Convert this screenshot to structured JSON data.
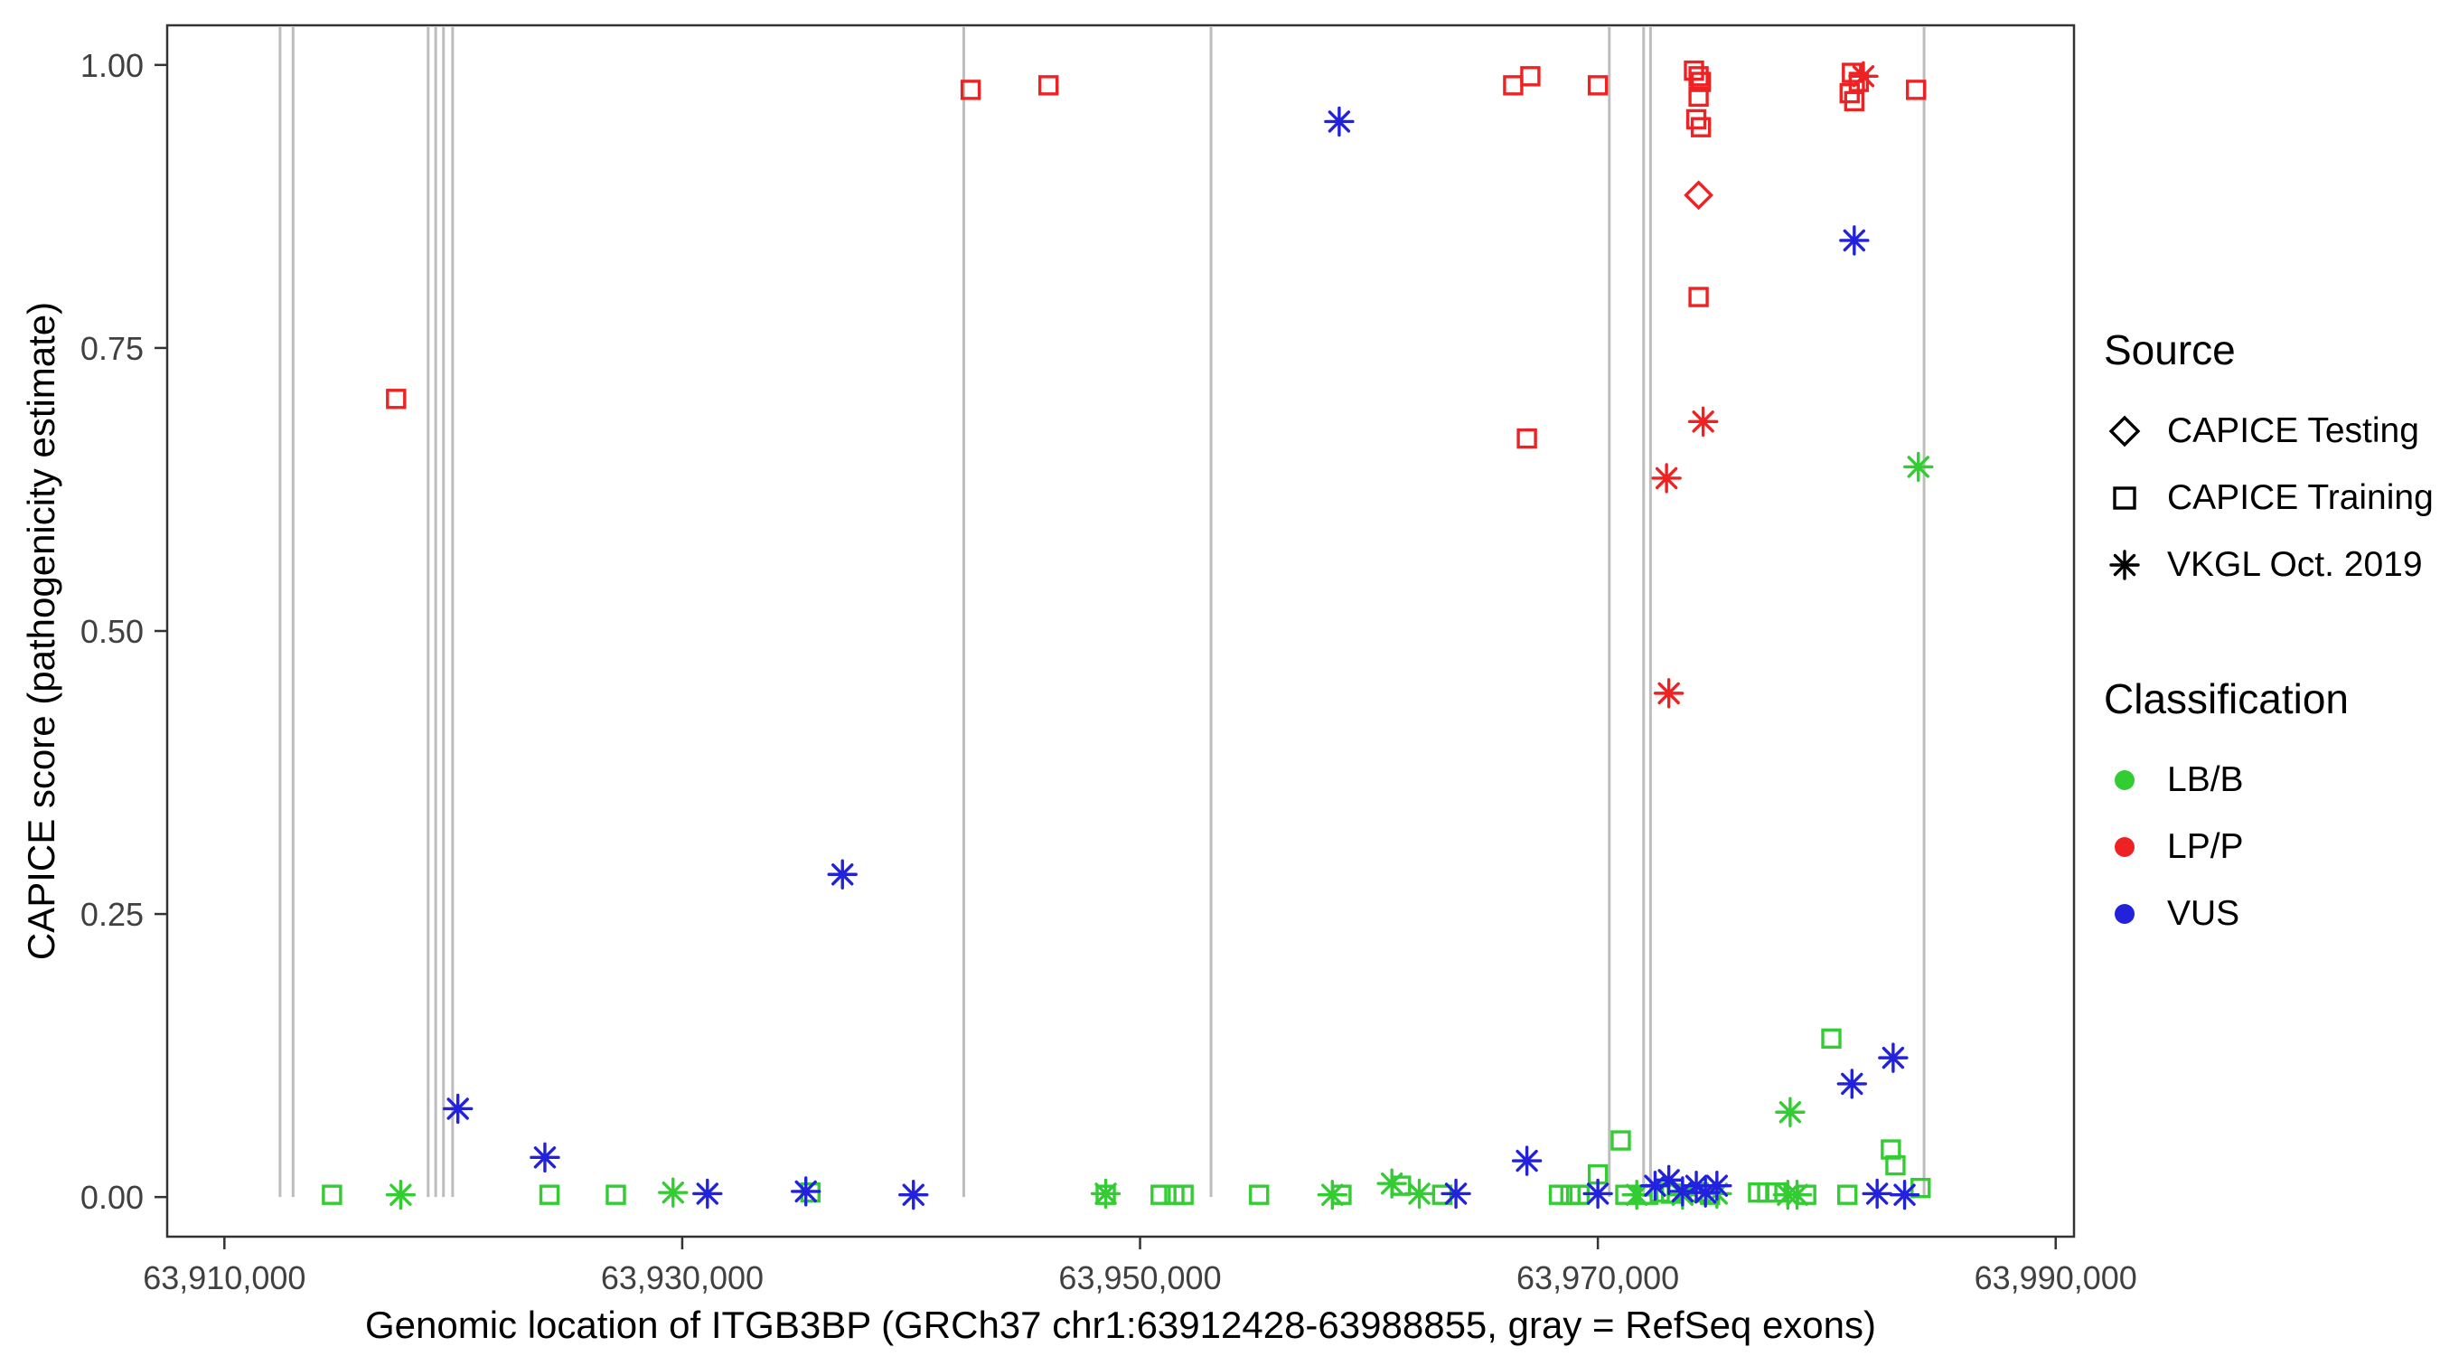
{
  "chart_data": {
    "type": "scatter",
    "title": "",
    "xlabel": "Genomic location of ITGB3BP (GRCh37 chr1:63912428-63988855, gray = RefSeq exons)",
    "ylabel": "CAPICE score (pathogenicity estimate)",
    "x_axis": {
      "min": 63907500,
      "max": 63990800,
      "ticks": [
        63910000,
        63930000,
        63950000,
        63970000,
        63990000
      ],
      "tick_labels": [
        "63,910,000",
        "63,930,000",
        "63,950,000",
        "63,970,000",
        "63,990,000"
      ]
    },
    "y_axis": {
      "min": -0.035,
      "max": 1.035,
      "ticks": [
        0,
        0.25,
        0.5,
        0.75,
        1
      ],
      "tick_labels": [
        "0.00",
        "0.25",
        "0.50",
        "0.75",
        "1.00"
      ]
    },
    "grid": "off",
    "legend_position": "right",
    "exon_color": "#bdbdbd",
    "exons": [
      63912430,
      63913000,
      63918900,
      63919230,
      63919570,
      63919970,
      63942300,
      63953100,
      63970500,
      63972000,
      63972300,
      63984250
    ],
    "colors": {
      "LB/B": "#33CC33",
      "LP/P": "#EE2222",
      "VUS": "#2222DD"
    },
    "legend": {
      "source": {
        "title": "Source",
        "items": [
          {
            "label": "CAPICE Testing",
            "marker": "diamond"
          },
          {
            "label": "CAPICE Training",
            "marker": "square"
          },
          {
            "label": "VKGL Oct. 2019",
            "marker": "asterisk"
          }
        ]
      },
      "classification": {
        "title": "Classification",
        "items": [
          {
            "label": "LB/B"
          },
          {
            "label": "LP/P"
          },
          {
            "label": "VUS"
          }
        ]
      }
    },
    "series": [
      {
        "name": "LP/P - CAPICE Testing",
        "source": "CAPICE Testing",
        "classification": "LP/P",
        "marker": "diamond",
        "points": [
          [
            63974400,
            0.885
          ]
        ]
      },
      {
        "name": "LP/P - CAPICE Training",
        "source": "CAPICE Training",
        "classification": "LP/P",
        "marker": "square",
        "points": [
          [
            63917500,
            0.705
          ],
          [
            63942600,
            0.978
          ],
          [
            63946000,
            0.982
          ],
          [
            63966300,
            0.982
          ],
          [
            63967050,
            0.99
          ],
          [
            63966900,
            0.67
          ],
          [
            63970000,
            0.982
          ],
          [
            63974200,
            0.995
          ],
          [
            63974400,
            0.99
          ],
          [
            63974500,
            0.985
          ],
          [
            63974400,
            0.972
          ],
          [
            63974300,
            0.952
          ],
          [
            63974500,
            0.945
          ],
          [
            63974400,
            0.795
          ],
          [
            63981100,
            0.993
          ],
          [
            63981400,
            0.985
          ],
          [
            63981000,
            0.975
          ],
          [
            63981200,
            0.968
          ],
          [
            63983900,
            0.978
          ]
        ]
      },
      {
        "name": "LP/P - VKGL Oct. 2019",
        "source": "VKGL Oct. 2019",
        "classification": "LP/P",
        "marker": "asterisk",
        "points": [
          [
            63974600,
            0.685
          ],
          [
            63973000,
            0.635
          ],
          [
            63973100,
            0.445
          ],
          [
            63981600,
            0.99
          ]
        ]
      },
      {
        "name": "LB/B - CAPICE Training",
        "source": "CAPICE Training",
        "classification": "LB/B",
        "marker": "square",
        "points": [
          [
            63914700,
            0.002
          ],
          [
            63924200,
            0.002
          ],
          [
            63927100,
            0.002
          ],
          [
            63935600,
            0.004
          ],
          [
            63948500,
            0.002
          ],
          [
            63950900,
            0.002
          ],
          [
            63951500,
            0.002
          ],
          [
            63951900,
            0.002
          ],
          [
            63955200,
            0.002
          ],
          [
            63958800,
            0.002
          ],
          [
            63961400,
            0.01
          ],
          [
            63963200,
            0.002
          ],
          [
            63968300,
            0.002
          ],
          [
            63968800,
            0.002
          ],
          [
            63969200,
            0.002
          ],
          [
            63970000,
            0.02
          ],
          [
            63971000,
            0.05
          ],
          [
            63971200,
            0.002
          ],
          [
            63972200,
            0.002
          ],
          [
            63972700,
            0.004
          ],
          [
            63973200,
            0.003
          ],
          [
            63974400,
            0.004
          ],
          [
            63974900,
            0.002
          ],
          [
            63977000,
            0.004
          ],
          [
            63977400,
            0.004
          ],
          [
            63977800,
            0.004
          ],
          [
            63979100,
            0.002
          ],
          [
            63980200,
            0.14
          ],
          [
            63980900,
            0.002
          ],
          [
            63982800,
            0.042
          ],
          [
            63983000,
            0.028
          ],
          [
            63984100,
            0.008
          ]
        ]
      },
      {
        "name": "LB/B - VKGL Oct. 2019",
        "source": "VKGL Oct. 2019",
        "classification": "LB/B",
        "marker": "asterisk",
        "points": [
          [
            63917700,
            0.002
          ],
          [
            63929600,
            0.004
          ],
          [
            63948500,
            0.003
          ],
          [
            63958400,
            0.002
          ],
          [
            63961000,
            0.012
          ],
          [
            63962200,
            0.003
          ],
          [
            63971700,
            0.002
          ],
          [
            63973700,
            0.002
          ],
          [
            63975200,
            0.003
          ],
          [
            63978300,
            0.002
          ],
          [
            63978700,
            0.002
          ],
          [
            63978400,
            0.075
          ],
          [
            63984000,
            0.645
          ]
        ]
      },
      {
        "name": "VUS - VKGL Oct. 2019",
        "source": "VKGL Oct. 2019",
        "classification": "VUS",
        "marker": "asterisk",
        "points": [
          [
            63958700,
            0.95
          ],
          [
            63981200,
            0.845
          ],
          [
            63937000,
            0.285
          ],
          [
            63920200,
            0.078
          ],
          [
            63924000,
            0.035
          ],
          [
            63982900,
            0.123
          ],
          [
            63981100,
            0.1
          ],
          [
            63966900,
            0.032
          ],
          [
            63931100,
            0.003
          ],
          [
            63935400,
            0.005
          ],
          [
            63940100,
            0.002
          ],
          [
            63963800,
            0.003
          ],
          [
            63970000,
            0.003
          ],
          [
            63972500,
            0.01
          ],
          [
            63973100,
            0.015
          ],
          [
            63973700,
            0.005
          ],
          [
            63974300,
            0.01
          ],
          [
            63974700,
            0.004
          ],
          [
            63975200,
            0.01
          ],
          [
            63982200,
            0.003
          ],
          [
            63983400,
            0.002
          ]
        ]
      }
    ]
  }
}
